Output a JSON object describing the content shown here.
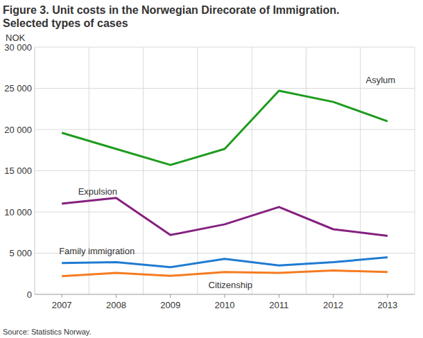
{
  "chart_data": {
    "type": "line",
    "title": "Figure 3. Unit costs in the Norwegian Direcorate of Immigration.",
    "subtitle": "Selected types of cases",
    "y_label": "NOK",
    "source": "Source: Statistics Norway.",
    "categories": [
      "2007",
      "2008",
      "2009",
      "2010",
      "2011",
      "2012",
      "2013"
    ],
    "ylim": [
      0,
      30000
    ],
    "yticks": [
      0,
      {
        "value": 5000,
        "label": "5 000"
      },
      {
        "value": 10000,
        "label": "10 000"
      },
      {
        "value": 15000,
        "label": "15 000"
      },
      {
        "value": 20000,
        "label": "20 000"
      },
      {
        "value": 25000,
        "label": "25 000"
      },
      {
        "value": 30000,
        "label": "30 000"
      }
    ],
    "grid": true,
    "series": [
      {
        "name": "Asylum",
        "color": "#1e9b1e",
        "values": [
          19600,
          17650,
          15700,
          17650,
          24700,
          23350,
          21000
        ]
      },
      {
        "name": "Expulsion",
        "color": "#84207f",
        "values": [
          11000,
          11700,
          7200,
          8500,
          10600,
          7900,
          7100
        ]
      },
      {
        "name": "Family immigration",
        "color": "#1f7bd1",
        "values": [
          3800,
          3900,
          3300,
          4300,
          3500,
          3900,
          4500
        ]
      },
      {
        "name": "Citizenship",
        "color": "#f57b20",
        "values": [
          2200,
          2600,
          2250,
          2700,
          2600,
          2900,
          2700
        ]
      }
    ]
  }
}
